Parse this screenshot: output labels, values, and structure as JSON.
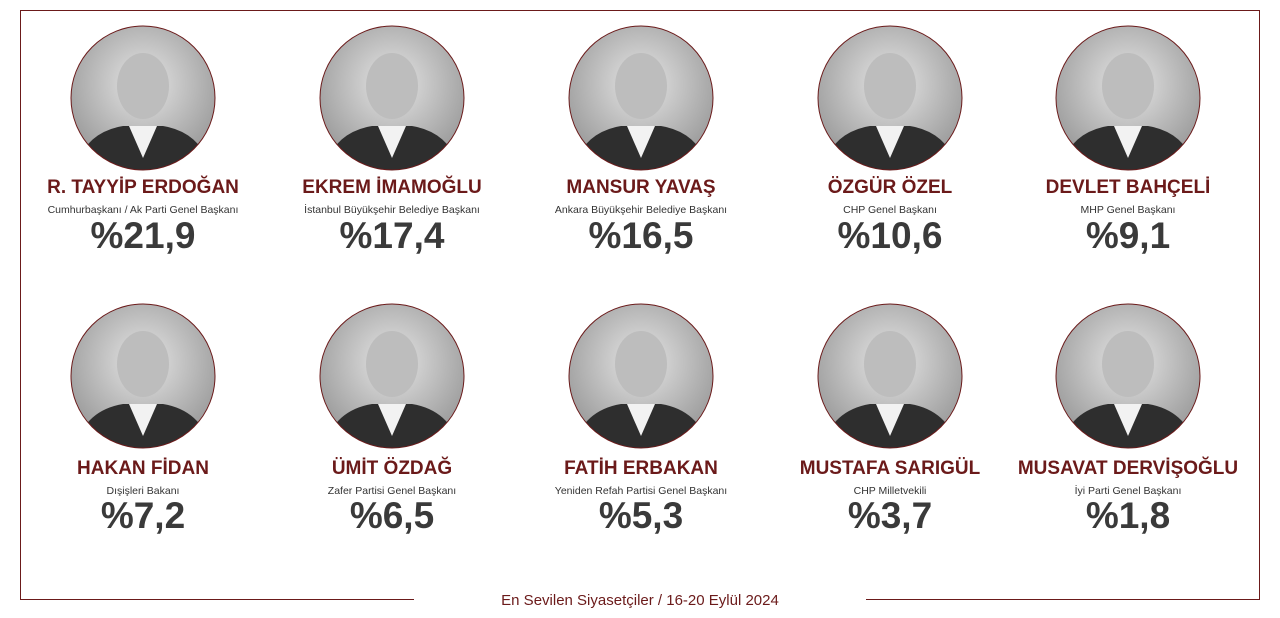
{
  "people": [
    {
      "name": "R. TAYYİP ERDOĞAN",
      "title": "Cumhurbaşkanı / Ak Parti Genel Başkanı",
      "percent": "%21,9"
    },
    {
      "name": "EKREM İMAMOĞLU",
      "title": "İstanbul Büyükşehir Belediye Başkanı",
      "percent": "%17,4"
    },
    {
      "name": "MANSUR YAVAŞ",
      "title": "Ankara Büyükşehir Belediye Başkanı",
      "percent": "%16,5"
    },
    {
      "name": "ÖZGÜR ÖZEL",
      "title": "CHP Genel Başkanı",
      "percent": "%10,6"
    },
    {
      "name": "DEVLET BAHÇELİ",
      "title": "MHP Genel Başkanı",
      "percent": "%9,1"
    },
    {
      "name": "HAKAN FİDAN",
      "title": "Dışişleri Bakanı",
      "percent": "%7,2"
    },
    {
      "name": "ÜMİT ÖZDAĞ",
      "title": "Zafer Partisi Genel Başkanı",
      "percent": "%6,5"
    },
    {
      "name": "FATİH ERBAKAN",
      "title": "Yeniden Refah Partisi Genel Başkanı",
      "percent": "%5,3"
    },
    {
      "name": "MUSTAFA SARIGÜL",
      "title": "CHP Milletvekili",
      "percent": "%3,7"
    },
    {
      "name": "MUSAVAT DERVİŞOĞLU",
      "title": "İyi Parti Genel Başkanı",
      "percent": "%1,8"
    }
  ],
  "footer": "En Sevilen Siyasetçiler / 16-20 Eylül 2024"
}
